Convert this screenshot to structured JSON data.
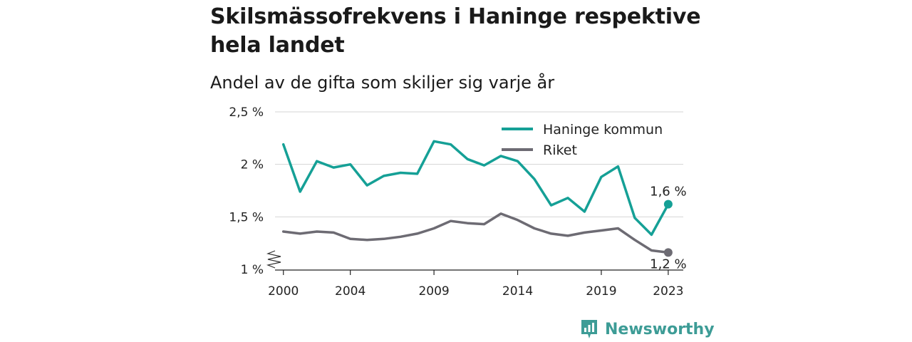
{
  "header": {
    "title": "Skilsmässofrekvens i Haninge respektive hela landet",
    "subtitle": "Andel av de gifta som skiljer sig varje år"
  },
  "brand": {
    "name": "Newsworthy",
    "color": "#3d9c96"
  },
  "chart_data": {
    "type": "line",
    "title": "Skilsmässofrekvens i Haninge respektive hela landet",
    "subtitle": "Andel av de gifta som skiljer sig varje år",
    "x": [
      2000,
      2001,
      2002,
      2003,
      2004,
      2005,
      2006,
      2007,
      2008,
      2009,
      2010,
      2011,
      2012,
      2013,
      2014,
      2015,
      2016,
      2017,
      2018,
      2019,
      2020,
      2021,
      2022,
      2023
    ],
    "x_ticks": [
      2000,
      2004,
      2009,
      2014,
      2019,
      2023
    ],
    "x_tick_labels": [
      "2000",
      "2004",
      "2009",
      "2014",
      "2019",
      "2023"
    ],
    "xlim": [
      1999.5,
      2023.9
    ],
    "y_ticks": [
      1.0,
      1.5,
      2.0,
      2.5
    ],
    "y_tick_labels": [
      "1 %",
      "1,5 %",
      "2 %",
      "2,5 %"
    ],
    "ylim": [
      1.0,
      2.5
    ],
    "axis_break": true,
    "grid": true,
    "legend_position": "top-right",
    "series": [
      {
        "name": "Haninge kommun",
        "color": "#15a096",
        "end_label": "1,6 %",
        "values": [
          2.19,
          1.74,
          2.03,
          1.97,
          2.0,
          1.8,
          1.89,
          1.92,
          1.91,
          2.22,
          2.19,
          2.05,
          1.99,
          2.08,
          2.03,
          1.86,
          1.61,
          1.68,
          1.55,
          1.88,
          1.98,
          1.49,
          1.33,
          1.62
        ]
      },
      {
        "name": "Riket",
        "color": "#6d6b73",
        "end_label": "1,2 %",
        "values": [
          1.36,
          1.34,
          1.36,
          1.35,
          1.29,
          1.28,
          1.29,
          1.31,
          1.34,
          1.39,
          1.46,
          1.44,
          1.43,
          1.53,
          1.47,
          1.39,
          1.34,
          1.32,
          1.35,
          1.37,
          1.39,
          1.28,
          1.18,
          1.16
        ]
      }
    ]
  }
}
